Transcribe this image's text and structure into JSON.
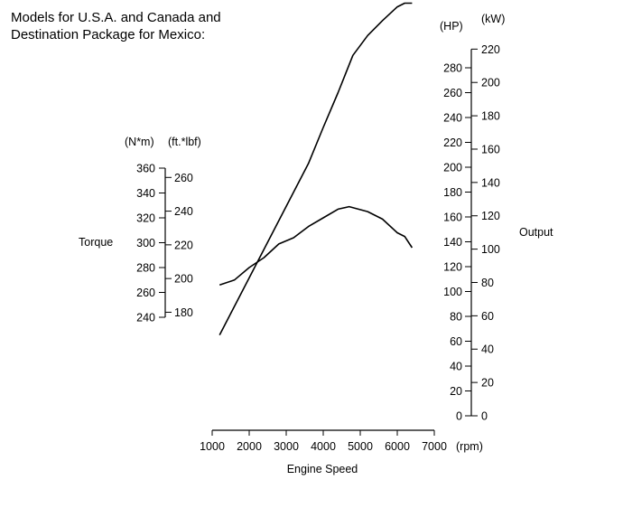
{
  "title_lines": [
    "Models for U.S.A. and Canada and",
    "Destination Package for Mexico:"
  ],
  "chart_data": {
    "type": "line",
    "title": "Models for U.S.A. and Canada and Destination Package for Mexico:",
    "xlabel": "Engine Speed",
    "x_unit": "(rpm)",
    "xlim": [
      1000,
      7000
    ],
    "x_ticks": [
      1000,
      2000,
      3000,
      4000,
      5000,
      6000,
      7000
    ],
    "torque_axis": {
      "label": "Torque",
      "unit_nm": "(N*m)",
      "unit_ftlbf": "(ft.*lbf)",
      "nm_ticks": [
        240,
        260,
        280,
        300,
        320,
        340,
        360
      ],
      "ftlbf_ticks": [
        180,
        200,
        220,
        240,
        260
      ]
    },
    "output_axis": {
      "label": "Output",
      "unit_hp": "(HP)",
      "unit_kw": "(kW)",
      "hp_ticks": [
        0,
        20,
        40,
        60,
        80,
        100,
        120,
        140,
        160,
        180,
        200,
        220,
        240,
        260,
        280
      ],
      "kw_ticks": [
        0,
        20,
        40,
        60,
        80,
        100,
        120,
        140,
        160,
        180,
        200,
        220
      ]
    },
    "series": [
      {
        "axis": "torque_nm",
        "x": [
          1200,
          1600,
          2000,
          2400,
          2800,
          3200,
          3600,
          4000,
          4400,
          4700,
          5200,
          5600,
          6000,
          6200,
          6400
        ],
        "y": [
          266,
          270,
          280,
          288,
          299,
          304,
          313,
          320,
          327,
          329,
          325,
          319,
          308,
          305,
          296
        ]
      },
      {
        "axis": "output_hp",
        "x": [
          1200,
          1600,
          2000,
          2400,
          2800,
          3200,
          3600,
          4000,
          4400,
          4800,
          5200,
          5600,
          6000,
          6200,
          6400
        ],
        "y": [
          65,
          88,
          111,
          134,
          157,
          180,
          203,
          232,
          260,
          290,
          306,
          318,
          329,
          332,
          332
        ]
      }
    ]
  }
}
